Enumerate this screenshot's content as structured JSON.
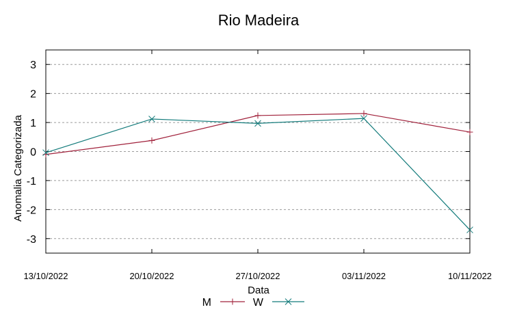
{
  "chart_data": {
    "type": "line",
    "title": "Rio Madeira",
    "xlabel": "Data",
    "ylabel": "Anomalia Categorizada",
    "categories": [
      "13/10/2022",
      "20/10/2022",
      "27/10/2022",
      "03/11/2022",
      "10/11/2022"
    ],
    "ylim": [
      -3.5,
      3.5
    ],
    "yticks": [
      3,
      2,
      1,
      0,
      -1,
      -2,
      -3
    ],
    "ytick_labels": [
      "3",
      "2",
      "1",
      "0",
      "-1",
      "-2",
      "-3"
    ],
    "grid": true,
    "legend_position": "bottom",
    "series": [
      {
        "name": "M",
        "color": "#a0203a",
        "marker": "plus",
        "values": [
          -0.1,
          0.38,
          1.24,
          1.31,
          0.67
        ]
      },
      {
        "name": "W",
        "color": "#117a7a",
        "marker": "x",
        "values": [
          -0.04,
          1.12,
          0.97,
          1.14,
          -2.7
        ]
      }
    ]
  }
}
